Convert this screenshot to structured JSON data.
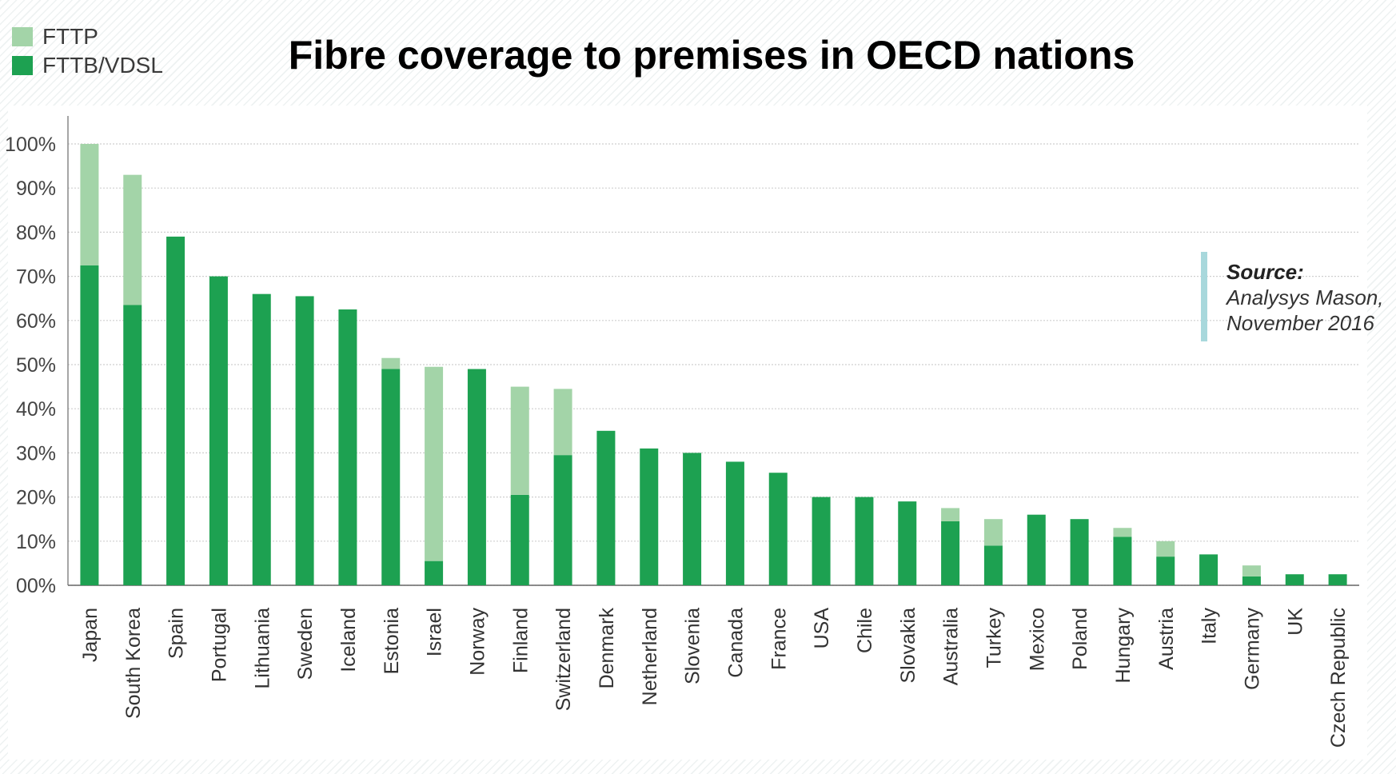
{
  "legend": {
    "items": [
      {
        "label": "FTTP",
        "color": "#a3d4a8"
      },
      {
        "label": "FTTB/VDSL",
        "color": "#1da151"
      }
    ]
  },
  "source": {
    "heading": "Source:",
    "lines": [
      "Analysys Mason,",
      "November 2016"
    ]
  },
  "chart_data": {
    "type": "bar",
    "stacked": true,
    "title": "Fibre coverage to premises in OECD nations",
    "xlabel": "",
    "ylabel": "",
    "ylim": [
      0,
      100
    ],
    "yticks": [
      0,
      10,
      20,
      30,
      40,
      50,
      60,
      70,
      80,
      90,
      100
    ],
    "ytick_labels": [
      "00%",
      "10%",
      "20%",
      "30%",
      "40%",
      "50%",
      "60%",
      "70%",
      "80%",
      "90%",
      "100%"
    ],
    "grid": true,
    "legend_position": "top-left",
    "categories": [
      "Japan",
      "South Korea",
      "Spain",
      "Portugal",
      "Lithuania",
      "Sweden",
      "Iceland",
      "Estonia",
      "Israel",
      "Norway",
      "Finland",
      "Switzerland",
      "Denmark",
      "Netherland",
      "Slovenia",
      "Canada",
      "France",
      "USA",
      "Chile",
      "Slovakia",
      "Australia",
      "Turkey",
      "Mexico",
      "Poland",
      "Hungary",
      "Austria",
      "Italy",
      "Germany",
      "UK",
      "Czech Republic"
    ],
    "series": [
      {
        "name": "FTTB/VDSL",
        "color": "#1da151",
        "values": [
          72.5,
          63.5,
          79,
          70,
          66,
          65.5,
          62.5,
          49,
          5.5,
          49,
          20.5,
          29.5,
          35,
          31,
          30,
          28,
          25.5,
          20,
          20,
          19,
          14.5,
          9,
          16,
          15,
          11,
          6.5,
          7,
          2,
          2.5,
          2.5
        ]
      },
      {
        "name": "FTTP",
        "color": "#a3d4a8",
        "values": [
          27.5,
          29.5,
          0,
          0,
          0,
          0,
          0,
          2.5,
          44,
          0,
          24.5,
          15,
          0,
          0,
          0,
          0,
          0,
          0,
          0,
          0,
          3,
          6,
          0,
          0,
          2,
          3.5,
          0,
          2.5,
          0,
          0
        ]
      }
    ]
  }
}
